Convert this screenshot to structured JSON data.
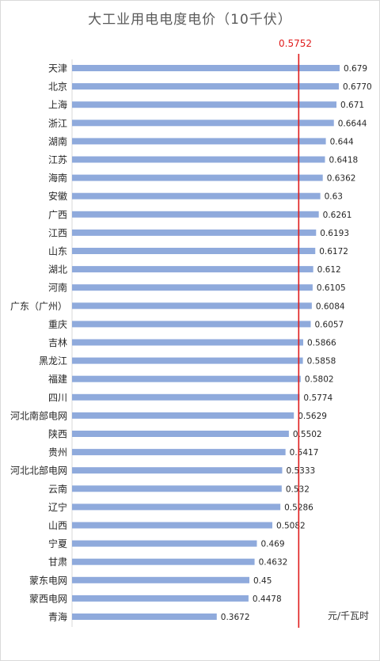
{
  "chart_data": {
    "type": "bar",
    "orientation": "horizontal",
    "title": "大工业用电电度电价（10千伏）",
    "unit": "元/千瓦时",
    "reference_line": {
      "value": 0.5752,
      "label": "0.5752",
      "color": "#e01b1b"
    },
    "bar_color": "#8faadc",
    "xlim": [
      0,
      0.72
    ],
    "grid": false,
    "legend": "none",
    "categories": [
      "天津",
      "北京",
      "上海",
      "浙江",
      "湖南",
      "江苏",
      "海南",
      "安徽",
      "广西",
      "江西",
      "山东",
      "湖北",
      "河南",
      "广东（广州）",
      "重庆",
      "吉林",
      "黑龙江",
      "福建",
      "四川",
      "河北南部电网",
      "陕西",
      "贵州",
      "河北北部电网",
      "云南",
      "辽宁",
      "山西",
      "宁夏",
      "甘肃",
      "蒙东电网",
      "蒙西电网",
      "青海"
    ],
    "values": [
      0.679,
      0.677,
      0.671,
      0.6644,
      0.644,
      0.6418,
      0.6362,
      0.63,
      0.6261,
      0.6193,
      0.6172,
      0.612,
      0.6105,
      0.6084,
      0.6057,
      0.5866,
      0.5858,
      0.5802,
      0.5774,
      0.5629,
      0.5502,
      0.5417,
      0.5333,
      0.532,
      0.5286,
      0.5082,
      0.469,
      0.4632,
      0.45,
      0.4478,
      0.3672
    ],
    "value_labels": [
      "0.679",
      "0.6770",
      "0.671",
      "0.6644",
      "0.644",
      "0.6418",
      "0.6362",
      "0.63",
      "0.6261",
      "0.6193",
      "0.6172",
      "0.612",
      "0.6105",
      "0.6084",
      "0.6057",
      "0.5866",
      "0.5858",
      "0.5802",
      "0.5774",
      "0.5629",
      "0.5502",
      "0.5417",
      "0.5333",
      "0.532",
      "0.5286",
      "0.5082",
      "0.469",
      "0.4632",
      "0.45",
      "0.4478",
      "0.3672"
    ]
  }
}
